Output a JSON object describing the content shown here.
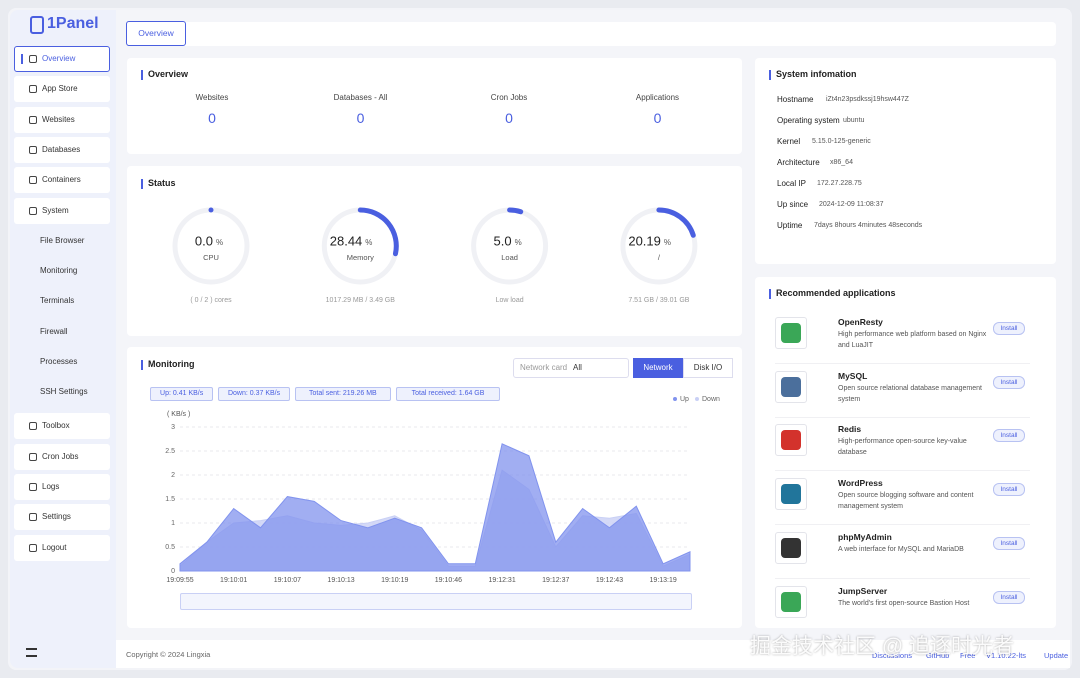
{
  "brand": "1Panel",
  "menu": [
    {
      "label": "Overview"
    },
    {
      "label": "App Store"
    },
    {
      "label": "Websites"
    },
    {
      "label": "Databases"
    },
    {
      "label": "Containers"
    },
    {
      "label": "System",
      "children": [
        "File Browser",
        "Monitoring",
        "Terminals",
        "Firewall",
        "Processes",
        "SSH Settings"
      ]
    },
    {
      "label": "Toolbox"
    },
    {
      "label": "Cron Jobs"
    },
    {
      "label": "Logs"
    },
    {
      "label": "Settings"
    },
    {
      "label": "Logout"
    }
  ],
  "tab": "Overview",
  "overview": {
    "title": "Overview",
    "stats": [
      {
        "label": "Websites",
        "value": 0
      },
      {
        "label": "Databases - All",
        "value": 0
      },
      {
        "label": "Cron Jobs",
        "value": 0
      },
      {
        "label": "Applications",
        "value": 0
      }
    ]
  },
  "status": {
    "title": "Status",
    "gauges": [
      {
        "name": "CPU",
        "value": 0,
        "value_label": "0.0",
        "unit": "%",
        "detail": "( 0 / 2 ) cores"
      },
      {
        "name": "Memory",
        "value": 28.44,
        "unit": "%",
        "detail": "1017.29 MB / 3.49 GB"
      },
      {
        "name": "Load",
        "value": 5,
        "value_label": "5.0",
        "unit": "%",
        "detail": "Low load"
      },
      {
        "name": "/",
        "value": 20.19,
        "unit": "%",
        "detail": "7.51 GB / 39.01 GB"
      }
    ]
  },
  "monitoring": {
    "title": "Monitoring",
    "network_card_label": "Network card",
    "network_card_value": "All",
    "buttons": [
      "Network",
      "Disk I/O"
    ],
    "badges": [
      "Up: 0.41 KB/s",
      "Down: 0.37 KB/s",
      "Total sent: 219.26 MB",
      "Total received: 1.64 GB"
    ],
    "chart": {
      "type": "area",
      "unit_label": "( KB/s )",
      "x": [
        "19:09:55",
        null,
        "19:10:01",
        null,
        "19:10:07",
        null,
        "19:10:13",
        null,
        "19:10:19",
        null,
        "19:10:46",
        null,
        "19:12:31",
        null,
        "19:12:37",
        null,
        "19:12:43",
        null,
        "19:13:19",
        null
      ],
      "series": [
        {
          "name": "Up",
          "color": "#8193ee",
          "values": [
            0.15,
            0.6,
            1.3,
            0.9,
            1.55,
            1.45,
            1.05,
            0.9,
            1.1,
            0.9,
            0.15,
            0.15,
            2.65,
            2.4,
            0.6,
            1.3,
            0.9,
            1.35,
            0.15,
            0.4
          ]
        },
        {
          "name": "Down",
          "color": "#c9d0f5",
          "values": [
            0.1,
            0.6,
            1.0,
            1.05,
            1.15,
            1.0,
            0.95,
            1.0,
            1.15,
            0.85,
            0.1,
            0.1,
            2.1,
            1.7,
            0.5,
            1.15,
            1.1,
            1.2,
            0.1,
            0.35
          ]
        }
      ],
      "ylim": [
        0,
        3
      ],
      "yticks": [
        0,
        0.5,
        1,
        1.5,
        2,
        2.5,
        3
      ],
      "grid": true
    }
  },
  "system_info": {
    "title": "System infomation",
    "rows": [
      [
        "Hostname",
        "iZt4n23psdkssj19hsw447Z"
      ],
      [
        "Operating system",
        "ubuntu"
      ],
      [
        "Kernel",
        "5.15.0-125-generic"
      ],
      [
        "Architecture",
        "x86_64"
      ],
      [
        "Local IP",
        "172.27.228.75"
      ],
      [
        "Up since",
        "2024-12-09 11:08:37"
      ],
      [
        "Uptime",
        "7days 8hours 4minutes 48seconds"
      ]
    ]
  },
  "recommended": {
    "title": "Recommended applications",
    "install": "Install",
    "apps": [
      {
        "name": "OpenResty",
        "description": "High performance web platform based on Nginx and LuaJIT"
      },
      {
        "name": "MySQL",
        "description": "Open source relational database management system"
      },
      {
        "name": "Redis",
        "description": "High-performance open-source key-value database"
      },
      {
        "name": "WordPress",
        "description": "Open source blogging software and content management system"
      },
      {
        "name": "phpMyAdmin",
        "description": "A web interface for MySQL and MariaDB"
      },
      {
        "name": "JumpServer",
        "description": "The world's first open-source Bastion Host"
      }
    ]
  },
  "footer": {
    "copyright": "Copyright © 2024 Lingxia",
    "links": [
      "Discussions",
      "GitHub",
      "Free",
      "V1.10.22-lts",
      "Update"
    ]
  },
  "watermark": "掘金技术社区 @ 追逐时光者"
}
